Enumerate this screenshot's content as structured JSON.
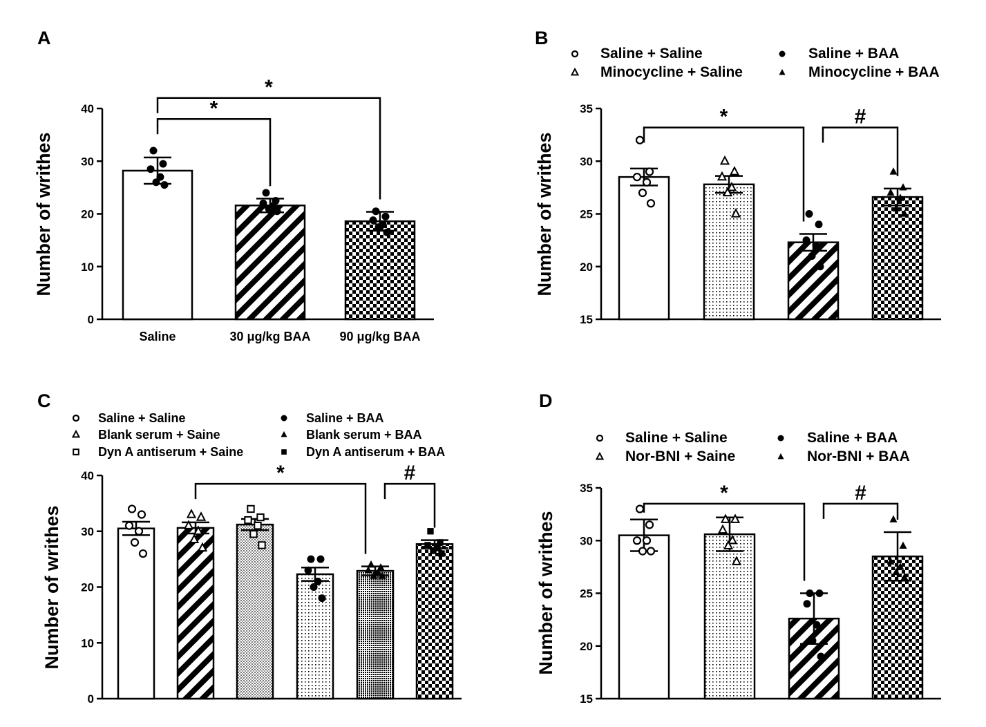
{
  "chart_data": [
    {
      "panel": "A",
      "type": "bar",
      "ylabel": "Number of writhes",
      "ylim": [
        0,
        40
      ],
      "yticks": [
        "0",
        "10",
        "20",
        "30",
        "40"
      ],
      "categories": [
        "Saline",
        "30 μg/kg BAA",
        "90 μg/kg BAA"
      ],
      "values": [
        28.2,
        21.6,
        18.6
      ],
      "errors": [
        2.5,
        1.3,
        1.8
      ],
      "fills": [
        "none",
        "diag",
        "check"
      ],
      "markers": [
        "dot",
        "dot",
        "dot"
      ],
      "points": [
        [
          32,
          29.5,
          28.5,
          27,
          26,
          25.5
        ],
        [
          24,
          22.5,
          22,
          21.5,
          21,
          20.5
        ],
        [
          20.5,
          19.5,
          18.8,
          18,
          17.5,
          16.5
        ]
      ],
      "significance": [
        {
          "label": "*",
          "from": 0,
          "to": 1,
          "level": 38
        },
        {
          "label": "*",
          "from": 0,
          "to": 2,
          "level": 42
        }
      ]
    },
    {
      "panel": "B",
      "type": "bar",
      "ylabel": "Number of writhes",
      "ylim": [
        15,
        35
      ],
      "yticks": [
        "15",
        "20",
        "25",
        "30",
        "35"
      ],
      "legend": [
        "Saline + Saline",
        "Saline + BAA",
        "Minocycline + Saline",
        "Minocycline + BAA"
      ],
      "legend_markers": [
        "circle-open",
        "dot",
        "triangle-open",
        "triangle"
      ],
      "categories": [
        "",
        "",
        "",
        ""
      ],
      "values": [
        28.5,
        27.8,
        22.3,
        26.6
      ],
      "errors": [
        0.8,
        0.8,
        0.8,
        0.8
      ],
      "fills": [
        "none",
        "dots",
        "diag",
        "check"
      ],
      "markers": [
        "circle-open",
        "triangle-open",
        "dot",
        "triangle"
      ],
      "points": [
        [
          32,
          29,
          28.5,
          28,
          27,
          26
        ],
        [
          30,
          29,
          28.5,
          27.5,
          27,
          25
        ],
        [
          25,
          24,
          22.5,
          22,
          21,
          20
        ],
        [
          29,
          27.5,
          27,
          26.5,
          25.5,
          25
        ]
      ],
      "significance": [
        {
          "label": "*",
          "from": 0,
          "to": 2,
          "level": 33.2
        },
        {
          "label": "#",
          "from": 2,
          "to": 3,
          "level": 33.2
        }
      ]
    },
    {
      "panel": "C",
      "type": "bar",
      "ylabel": "Number of writhes",
      "ylim": [
        0,
        40
      ],
      "yticks": [
        "0",
        "10",
        "20",
        "30",
        "40"
      ],
      "legend": [
        "Saline + Saline",
        "Saline + BAA",
        "Blank serum + Saine",
        "Blank serum + BAA",
        "Dyn A antiserum + Saine",
        "Dyn A antiserum + BAA"
      ],
      "legend_markers": [
        "circle-open",
        "dot",
        "triangle-open",
        "triangle",
        "square-open",
        "square"
      ],
      "categories": [
        "",
        "",
        "",
        "",
        "",
        ""
      ],
      "values": [
        30.5,
        30.6,
        31.2,
        22.3,
        22.9,
        27.7
      ],
      "errors": [
        1.2,
        1.0,
        1.0,
        1.2,
        0.8,
        0.7
      ],
      "fills": [
        "none",
        "diag",
        "fine",
        "dots",
        "dense",
        "check"
      ],
      "markers": [
        "circle-open",
        "triangle-open",
        "square-open",
        "dot",
        "triangle",
        "square"
      ],
      "points": [
        [
          34,
          33,
          31,
          30,
          28,
          26
        ],
        [
          33,
          32.5,
          31,
          30,
          28.5,
          27
        ],
        [
          34,
          32.5,
          32,
          31,
          29.5,
          27.5
        ],
        [
          25,
          25,
          23,
          21,
          20,
          18
        ],
        [
          24,
          23.5,
          23,
          22.5,
          22,
          22
        ],
        [
          30,
          28,
          27.5,
          27,
          26.5,
          26
        ]
      ],
      "significance": [
        {
          "label": "*",
          "from": 1,
          "to": 4,
          "level": 38.5
        },
        {
          "label": "#",
          "from": 4,
          "to": 5,
          "level": 38.5
        }
      ]
    },
    {
      "panel": "D",
      "type": "bar",
      "ylabel": "Number of writhes",
      "ylim": [
        15,
        35
      ],
      "yticks": [
        "15",
        "20",
        "25",
        "30",
        "35"
      ],
      "legend": [
        "Saline + Saline",
        "Saline + BAA",
        "Nor-BNI + Saine",
        "Nor-BNI + BAA"
      ],
      "legend_markers": [
        "circle-open",
        "dot",
        "triangle-open",
        "triangle"
      ],
      "categories": [
        "",
        "",
        "",
        ""
      ],
      "values": [
        30.5,
        30.6,
        22.6,
        28.5
      ],
      "errors": [
        1.5,
        1.6,
        2.4,
        2.3
      ],
      "fills": [
        "none",
        "dots",
        "diag",
        "check"
      ],
      "markers": [
        "circle-open",
        "triangle-open",
        "dot",
        "triangle"
      ],
      "points": [
        [
          33,
          31.5,
          30,
          30,
          29,
          29
        ],
        [
          32,
          32,
          31,
          30,
          29.5,
          28
        ],
        [
          25,
          25,
          24,
          22,
          20.5,
          19
        ],
        [
          32,
          29.5,
          28,
          27.5,
          27,
          26.5
        ]
      ],
      "significance": [
        {
          "label": "*",
          "from": 0,
          "to": 2,
          "level": 33.5
        },
        {
          "label": "#",
          "from": 2,
          "to": 3,
          "level": 33.5
        }
      ]
    }
  ]
}
